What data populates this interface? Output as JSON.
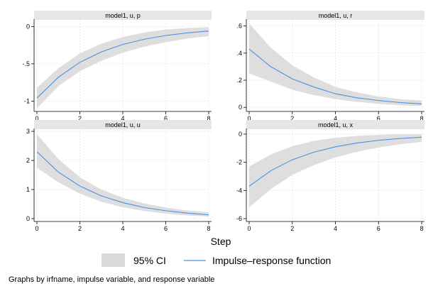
{
  "chart_data": {
    "type": "line",
    "xlabel": "Step",
    "legend": {
      "placement": "bottom",
      "entries": [
        {
          "key": "ci",
          "label": "95% CI",
          "color": "#d9d9d9"
        },
        {
          "key": "irf",
          "label": "Impulse–response function",
          "color": "#4a90e2"
        }
      ]
    },
    "note": "Graphs by irfname, impulse variable, and response variable",
    "colors": {
      "band": "#dedede",
      "line": "#4a90e2",
      "strip": "#e6e6e6",
      "grid": "#e5e5e5"
    },
    "grid": true,
    "panels": [
      {
        "title": "model1, u, p",
        "xlim": [
          0,
          8
        ],
        "ylim": [
          -1.12,
          0.08
        ],
        "yticks": [
          0,
          -0.5,
          -1
        ],
        "ytick_labels": [
          "0",
          "-.5",
          "-1"
        ],
        "xticks": [
          0,
          2,
          4,
          6,
          8
        ],
        "ytick_gridlines": [
          0,
          -0.5,
          -1
        ],
        "x": [
          0,
          1,
          2,
          3,
          4,
          5,
          6,
          7,
          8
        ],
        "irf": [
          -0.96,
          -0.68,
          -0.48,
          -0.34,
          -0.24,
          -0.17,
          -0.12,
          -0.085,
          -0.06
        ],
        "ci_low": [
          -1.1,
          -0.8,
          -0.6,
          -0.46,
          -0.35,
          -0.27,
          -0.21,
          -0.16,
          -0.13
        ],
        "ci_high": [
          -0.82,
          -0.56,
          -0.36,
          -0.23,
          -0.14,
          -0.08,
          -0.04,
          -0.02,
          -0.01
        ]
      },
      {
        "title": "model1, u, r",
        "xlim": [
          0,
          8
        ],
        "ylim": [
          -0.02,
          0.64
        ],
        "yticks": [
          0,
          0.2,
          0.4,
          0.6
        ],
        "ytick_labels": [
          "0",
          ".2",
          ".4",
          ".6"
        ],
        "xticks": [
          0,
          2,
          4,
          6,
          8
        ],
        "ytick_gridlines": [
          0,
          0.2,
          0.4,
          0.6
        ],
        "x": [
          0,
          1,
          2,
          3,
          4,
          5,
          6,
          7,
          8
        ],
        "irf": [
          0.43,
          0.3,
          0.21,
          0.15,
          0.1,
          0.07,
          0.05,
          0.035,
          0.025
        ],
        "ci_low": [
          0.25,
          0.19,
          0.13,
          0.09,
          0.06,
          0.04,
          0.025,
          0.015,
          0.01
        ],
        "ci_high": [
          0.62,
          0.44,
          0.31,
          0.22,
          0.15,
          0.11,
          0.08,
          0.06,
          0.05
        ]
      },
      {
        "title": "model1, u, u",
        "xlim": [
          0,
          8
        ],
        "ylim": [
          -0.05,
          3.05
        ],
        "yticks": [
          0,
          1,
          2,
          3
        ],
        "ytick_labels": [
          "0",
          "1",
          "2",
          "3"
        ],
        "xticks": [
          0,
          2,
          4,
          6,
          8
        ],
        "ytick_gridlines": [
          0,
          1,
          2,
          3
        ],
        "x": [
          0,
          1,
          2,
          3,
          4,
          5,
          6,
          7,
          8
        ],
        "irf": [
          2.3,
          1.6,
          1.12,
          0.78,
          0.55,
          0.38,
          0.27,
          0.19,
          0.13
        ],
        "ci_low": [
          1.75,
          1.25,
          0.86,
          0.58,
          0.39,
          0.26,
          0.17,
          0.11,
          0.07
        ],
        "ci_high": [
          2.9,
          2.05,
          1.42,
          1.0,
          0.72,
          0.52,
          0.38,
          0.28,
          0.22
        ]
      },
      {
        "title": "model1, u, x",
        "xlim": [
          0,
          8
        ],
        "ylim": [
          -6.1,
          0.3
        ],
        "yticks": [
          0,
          -2,
          -4,
          -6
        ],
        "ytick_labels": [
          "0",
          "-2",
          "-4",
          "-6"
        ],
        "xticks": [
          0,
          2,
          4,
          6,
          8
        ],
        "ytick_gridlines": [
          0,
          -2,
          -4,
          -6
        ],
        "x": [
          0,
          1,
          2,
          3,
          4,
          5,
          6,
          7,
          8
        ],
        "irf": [
          -3.7,
          -2.6,
          -1.82,
          -1.28,
          -0.9,
          -0.63,
          -0.44,
          -0.31,
          -0.22
        ],
        "ci_low": [
          -5.2,
          -3.9,
          -2.9,
          -2.2,
          -1.65,
          -1.25,
          -0.95,
          -0.72,
          -0.55
        ],
        "ci_high": [
          -2.3,
          -1.45,
          -0.85,
          -0.48,
          -0.26,
          -0.13,
          -0.05,
          -0.01,
          0.0
        ]
      }
    ]
  }
}
